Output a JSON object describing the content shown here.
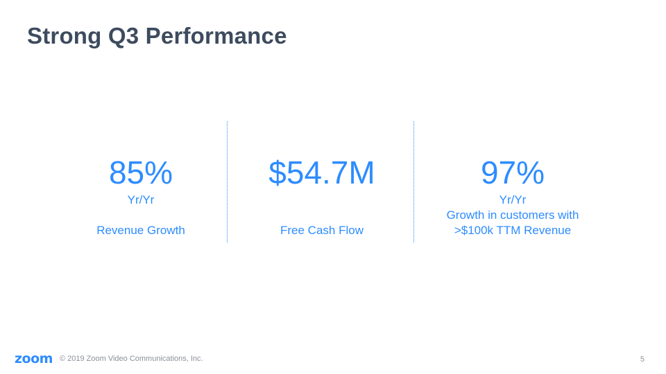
{
  "slide": {
    "title": "Strong Q3 Performance",
    "metrics": [
      {
        "value": "85%",
        "sub": "Yr/Yr",
        "label": "Revenue Growth"
      },
      {
        "value": "$54.7M",
        "sub": "",
        "label": "Free Cash Flow"
      },
      {
        "value": "97%",
        "sub": "Yr/Yr",
        "label_line1": "Growth in customers with",
        "label_line2": ">$100k TTM Revenue"
      }
    ]
  },
  "footer": {
    "logo_text": "zoom",
    "copyright": "© 2019 Zoom Video Communications, Inc.",
    "page_number": "5"
  },
  "colors": {
    "accent": "#2d8cff",
    "title": "#3d4b5e",
    "footer_text": "#8a8f98"
  }
}
